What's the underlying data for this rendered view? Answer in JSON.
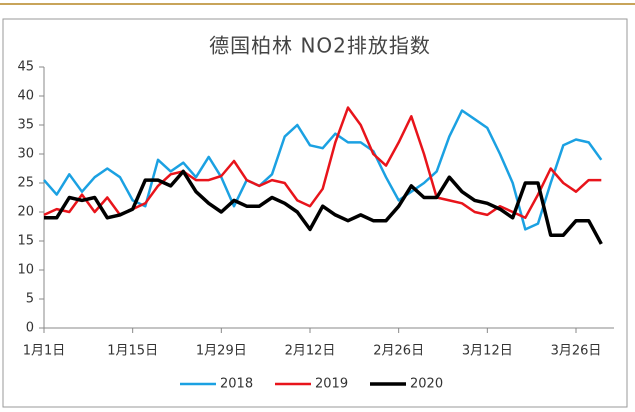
{
  "chart_data": {
    "type": "line",
    "title": "德国柏林 NO2排放指数",
    "x": [
      0,
      2,
      4,
      6,
      8,
      10,
      12,
      14,
      16,
      18,
      20,
      22,
      24,
      26,
      28,
      30,
      32,
      34,
      36,
      38,
      40,
      42,
      44,
      46,
      48,
      50,
      52,
      54,
      56,
      58,
      60,
      62,
      64,
      66,
      68,
      70,
      72,
      74,
      76,
      78,
      80,
      82,
      84,
      86,
      88
    ],
    "xlim": [
      0,
      90
    ],
    "xticks": [
      {
        "value": 0,
        "label": "1月1日"
      },
      {
        "value": 14,
        "label": "1月15日"
      },
      {
        "value": 28,
        "label": "1月29日"
      },
      {
        "value": 42,
        "label": "2月12日"
      },
      {
        "value": 56,
        "label": "2月26日"
      },
      {
        "value": 70,
        "label": "3月12日"
      },
      {
        "value": 84,
        "label": "3月26日"
      }
    ],
    "ylim": [
      0,
      45
    ],
    "yticks": [
      0,
      5,
      10,
      15,
      20,
      25,
      30,
      35,
      40,
      45
    ],
    "series": [
      {
        "name": "2018",
        "color": "#1ba1e2",
        "values": [
          25.5,
          23,
          26.5,
          23.5,
          26,
          27.5,
          26,
          22,
          21,
          29,
          27,
          28.5,
          26,
          29.5,
          26,
          21,
          25.5,
          24.5,
          26.5,
          33,
          35,
          31.5,
          31,
          33.5,
          32,
          32,
          30.5,
          26,
          22,
          23.5,
          25,
          27,
          33,
          37.5,
          36,
          34.5,
          30,
          25,
          17,
          18,
          25,
          31.5,
          32.5,
          32,
          29
        ]
      },
      {
        "name": "2019",
        "color": "#e8141b",
        "values": [
          19.5,
          20.5,
          20,
          23,
          20,
          22.5,
          19.5,
          20.5,
          21.5,
          24.5,
          26.5,
          27,
          25.5,
          25.5,
          26.2,
          28.8,
          25.5,
          24.5,
          25.5,
          25,
          22,
          21,
          24,
          32,
          38,
          35,
          30,
          28,
          32,
          36.5,
          30,
          22.5,
          22,
          21.5,
          20,
          19.5,
          21,
          20,
          19,
          23,
          27.5,
          25,
          23.5,
          25.5,
          25.5
        ]
      },
      {
        "name": "2020",
        "color": "#000000",
        "values": [
          19,
          19,
          22.5,
          22,
          22.5,
          19,
          19.5,
          20.5,
          25.5,
          25.5,
          24.5,
          27,
          23.5,
          21.5,
          20,
          22,
          21,
          21,
          22.5,
          21.5,
          20,
          17,
          21,
          19.5,
          18.5,
          19.5,
          18.5,
          18.5,
          21,
          24.5,
          22.5,
          22.5,
          26,
          23.5,
          22,
          21.5,
          20.5,
          19,
          25,
          25,
          16,
          16,
          18.5,
          18.5,
          14.5
        ]
      }
    ]
  }
}
